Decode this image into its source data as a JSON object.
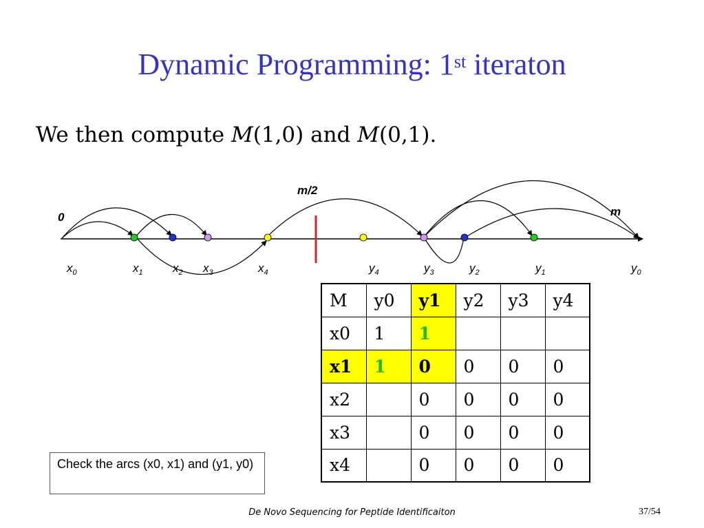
{
  "slide": {
    "title_main": "Dynamic Programming: 1",
    "title_sup": "st",
    "title_end": " iteraton",
    "body_prefix": "We then compute ",
    "body_m1": "M",
    "body_arg1": "(1,0) and ",
    "body_m2": "M",
    "body_arg2": "(0,1)."
  },
  "diagram": {
    "label_zero": "0",
    "label_mid": "m/2",
    "label_m": "m",
    "points": [
      {
        "name": "x",
        "sub": "0",
        "color": "none"
      },
      {
        "name": "x",
        "sub": "1",
        "color": "#22cc22"
      },
      {
        "name": "x",
        "sub": "2",
        "color": "#2233cc"
      },
      {
        "name": "x",
        "sub": "3",
        "color": "#cc99ee"
      },
      {
        "name": "x",
        "sub": "4",
        "color": "#ffff00"
      },
      {
        "name": "y",
        "sub": "4",
        "color": "#ffff00"
      },
      {
        "name": "y",
        "sub": "3",
        "color": "#cc99ee"
      },
      {
        "name": "y",
        "sub": "2",
        "color": "#2233cc"
      },
      {
        "name": "y",
        "sub": "1",
        "color": "#22cc22"
      },
      {
        "name": "y",
        "sub": "0",
        "color": "none"
      }
    ],
    "divider_color": "#dd2222"
  },
  "table": {
    "rows": [
      [
        "M",
        "y0",
        "y1",
        "y2",
        "y3",
        "y4"
      ],
      [
        "x0",
        "1",
        "1",
        "",
        "",
        ""
      ],
      [
        "x1",
        "1",
        "0",
        "0",
        "0",
        "0"
      ],
      [
        "x2",
        "",
        "0",
        "0",
        "0",
        "0"
      ],
      [
        "x3",
        "",
        "0",
        "0",
        "0",
        "0"
      ],
      [
        "x4",
        "",
        "0",
        "0",
        "0",
        "0"
      ]
    ],
    "highlight_color": "#ffff00",
    "green_color": "#22bb22"
  },
  "note": "Check the arcs (x0, x1) and (y1, y0)",
  "footer": {
    "title": "De Novo Sequencing for Peptide Identificaiton",
    "page": "37/54"
  }
}
